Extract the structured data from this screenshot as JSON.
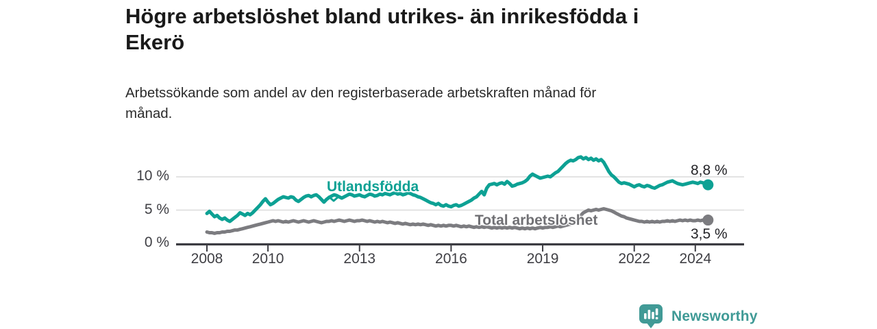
{
  "header": {
    "title_lines": [
      "Högre arbetslöshet bland utrikes- än inrikesfödda i",
      "Ekerö"
    ],
    "subtitle_lines": [
      "Arbetssökande som andel av den registerbaserade arbetskraften månad för",
      "månad."
    ]
  },
  "footer": {
    "brand": "Newsworthy",
    "brand_color": "#3f9a96"
  },
  "chart_data": {
    "type": "line",
    "title": "Högre arbetslöshet bland utrikes- än inrikesfödda i Ekerö",
    "subtitle": "Arbetssökande som andel av den registerbaserade arbetskraften månad för månad.",
    "xlabel": "",
    "ylabel": "",
    "x_start": 2008,
    "x_step": 0.0833,
    "x_end": 2024.42,
    "ylim": [
      0,
      13.5
    ],
    "grid": "horizontal-only",
    "legend": "inline-labels",
    "yticks": [
      {
        "label": "0 %",
        "value": 0
      },
      {
        "label": "5 %",
        "value": 5
      },
      {
        "label": "10 %",
        "value": 10
      }
    ],
    "xticks": [
      {
        "label": "2008",
        "value": 2008
      },
      {
        "label": "2010",
        "value": 2010
      },
      {
        "label": "2013",
        "value": 2013
      },
      {
        "label": "2016",
        "value": 2016
      },
      {
        "label": "2019",
        "value": 2019
      },
      {
        "label": "2022",
        "value": 2022
      },
      {
        "label": "2024",
        "value": 2024
      }
    ],
    "series": [
      {
        "name": "Utlandsfödda",
        "color": "#0da194",
        "end_label": "8,8 %",
        "end_value": 8.8,
        "values": [
          4.5,
          4.8,
          4.4,
          4.0,
          4.2,
          3.8,
          3.6,
          3.8,
          3.5,
          3.3,
          3.6,
          3.9,
          4.2,
          4.6,
          4.4,
          4.2,
          4.5,
          4.3,
          4.6,
          5.0,
          5.4,
          5.8,
          6.3,
          6.7,
          6.2,
          5.8,
          6.0,
          6.3,
          6.6,
          6.8,
          7.0,
          6.9,
          6.8,
          7.0,
          6.9,
          6.5,
          6.3,
          6.6,
          6.9,
          7.1,
          7.2,
          7.0,
          7.2,
          7.3,
          7.0,
          6.6,
          6.2,
          6.6,
          6.9,
          7.1,
          7.3,
          7.2,
          7.0,
          6.8,
          7.0,
          7.2,
          7.4,
          7.3,
          7.1,
          7.2,
          7.3,
          7.1,
          7.0,
          7.2,
          7.4,
          7.3,
          7.1,
          7.2,
          7.4,
          7.3,
          7.5,
          7.4,
          7.3,
          7.5,
          7.6,
          7.4,
          7.5,
          7.3,
          7.4,
          7.6,
          7.5,
          7.3,
          7.2,
          7.0,
          6.9,
          6.7,
          6.5,
          6.3,
          6.1,
          6.0,
          5.8,
          6.0,
          5.7,
          5.6,
          5.8,
          5.6,
          5.5,
          5.7,
          5.8,
          5.6,
          5.7,
          5.9,
          6.1,
          6.3,
          6.5,
          6.8,
          7.0,
          7.4,
          7.8,
          7.3,
          8.3,
          8.8,
          8.9,
          9.0,
          8.8,
          9.0,
          9.1,
          8.9,
          9.3,
          9.0,
          8.6,
          8.7,
          8.9,
          9.0,
          9.1,
          9.3,
          9.6,
          10.1,
          10.4,
          10.2,
          10.0,
          9.8,
          9.9,
          10.0,
          10.1,
          10.0,
          10.3,
          10.6,
          10.8,
          11.2,
          11.6,
          12.0,
          12.3,
          12.5,
          12.4,
          12.6,
          12.9,
          13.0,
          12.7,
          12.9,
          12.6,
          12.8,
          12.5,
          12.7,
          12.4,
          12.6,
          12.2,
          11.5,
          10.8,
          10.3,
          10.0,
          9.6,
          9.2,
          9.0,
          9.1,
          9.0,
          8.9,
          8.7,
          8.5,
          8.7,
          8.8,
          8.6,
          8.5,
          8.7,
          8.6,
          8.4,
          8.3,
          8.5,
          8.7,
          8.8,
          9.0,
          9.2,
          9.3,
          9.4,
          9.2,
          9.0,
          8.9,
          8.8,
          8.9,
          9.0,
          9.1,
          9.2,
          9.1,
          9.0,
          9.2,
          9.1,
          8.9,
          8.8
        ]
      },
      {
        "name": "Total arbetslöshet",
        "color": "#7c7c80",
        "end_label": "3,5 %",
        "end_value": 3.5,
        "values": [
          1.7,
          1.6,
          1.6,
          1.5,
          1.6,
          1.6,
          1.7,
          1.7,
          1.8,
          1.8,
          1.9,
          2.0,
          2.0,
          2.1,
          2.2,
          2.3,
          2.4,
          2.5,
          2.6,
          2.7,
          2.8,
          2.9,
          3.0,
          3.1,
          3.2,
          3.3,
          3.4,
          3.3,
          3.4,
          3.3,
          3.2,
          3.3,
          3.2,
          3.3,
          3.4,
          3.3,
          3.2,
          3.3,
          3.4,
          3.3,
          3.2,
          3.3,
          3.4,
          3.3,
          3.2,
          3.1,
          3.2,
          3.3,
          3.3,
          3.4,
          3.3,
          3.4,
          3.5,
          3.4,
          3.3,
          3.4,
          3.5,
          3.4,
          3.3,
          3.4,
          3.4,
          3.5,
          3.4,
          3.3,
          3.4,
          3.3,
          3.2,
          3.3,
          3.2,
          3.3,
          3.2,
          3.1,
          3.2,
          3.1,
          3.0,
          3.1,
          3.0,
          2.9,
          3.0,
          2.9,
          2.8,
          2.9,
          2.8,
          2.9,
          2.8,
          2.9,
          2.8,
          2.7,
          2.8,
          2.7,
          2.6,
          2.7,
          2.6,
          2.7,
          2.6,
          2.7,
          2.7,
          2.6,
          2.7,
          2.6,
          2.5,
          2.6,
          2.5,
          2.6,
          2.5,
          2.4,
          2.5,
          2.4,
          2.5,
          2.4,
          2.5,
          2.4,
          2.3,
          2.4,
          2.3,
          2.4,
          2.3,
          2.4,
          2.3,
          2.4,
          2.3,
          2.4,
          2.3,
          2.2,
          2.3,
          2.2,
          2.3,
          2.2,
          2.3,
          2.2,
          2.3,
          2.4,
          2.3,
          2.4,
          2.4,
          2.5,
          2.4,
          2.5,
          2.6,
          2.5,
          2.6,
          2.7,
          2.8,
          2.9,
          3.0,
          3.2,
          3.6,
          4.2,
          4.6,
          4.8,
          5.0,
          4.9,
          5.0,
          5.1,
          5.0,
          5.1,
          5.2,
          5.1,
          5.0,
          4.9,
          4.7,
          4.5,
          4.3,
          4.1,
          4.0,
          3.8,
          3.7,
          3.6,
          3.5,
          3.4,
          3.3,
          3.3,
          3.2,
          3.3,
          3.2,
          3.3,
          3.2,
          3.3,
          3.2,
          3.3,
          3.3,
          3.4,
          3.3,
          3.4,
          3.3,
          3.4,
          3.5,
          3.4,
          3.5,
          3.4,
          3.5,
          3.4,
          3.4,
          3.5,
          3.4,
          3.5,
          3.4,
          3.5
        ]
      }
    ]
  }
}
